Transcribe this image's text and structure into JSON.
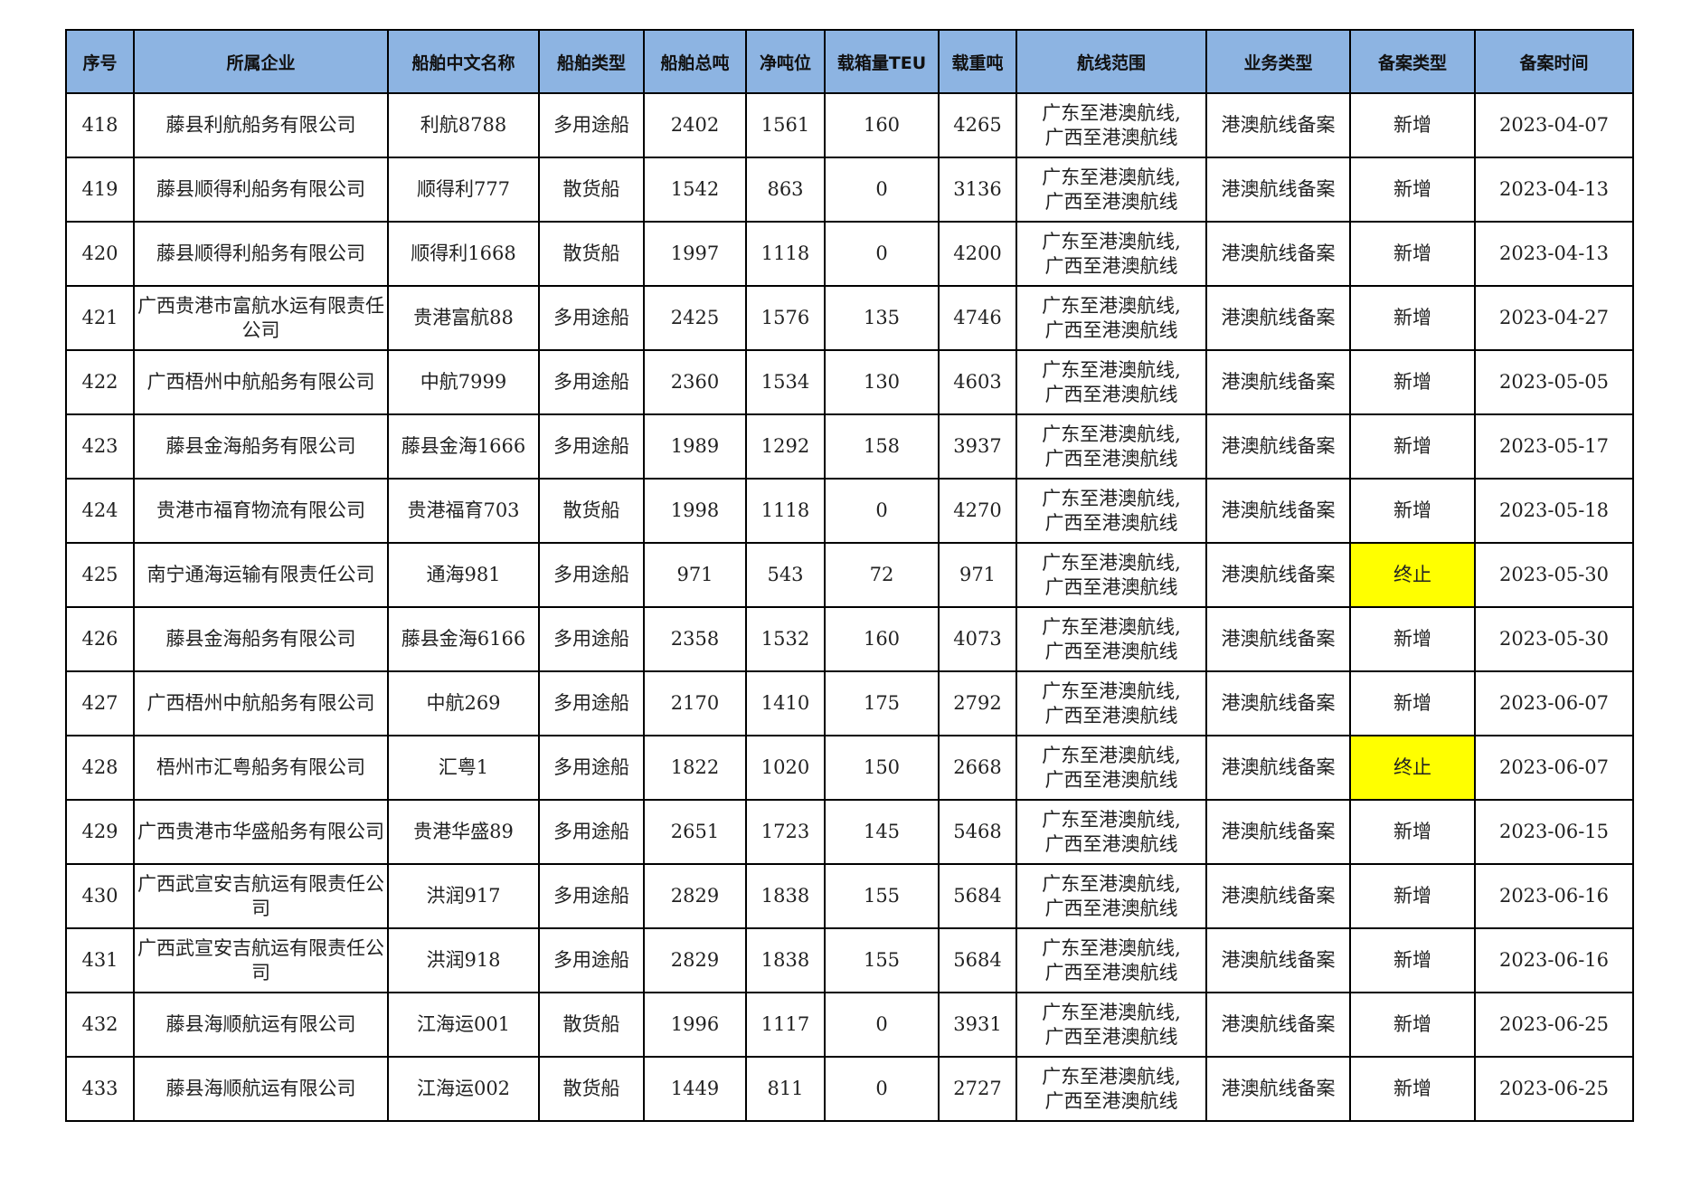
{
  "headers": [
    "序号",
    "所属企业",
    "船舶中文名称",
    "船舶类型",
    "船舶总吨",
    "净吨位",
    "载箱量TEU",
    "载重吨",
    "航线范围",
    "业务类型",
    "备案类型",
    "备案时间"
  ],
  "highlight_color": "#ffff00",
  "header_color": "#8db4e2",
  "rows": [
    [
      "418",
      "藤县利航船务有限公司",
      "利航8788",
      "多用途船",
      "2402",
      "1561",
      "160",
      "4265",
      "广东至港澳航线,广西至港澳航线",
      "港澳航线备案",
      "新增",
      "2023-04-07"
    ],
    [
      "419",
      "藤县顺得利船务有限公司",
      "顺得利777",
      "散货船",
      "1542",
      "863",
      "0",
      "3136",
      "广东至港澳航线,广西至港澳航线",
      "港澳航线备案",
      "新增",
      "2023-04-13"
    ],
    [
      "420",
      "藤县顺得利船务有限公司",
      "顺得利1668",
      "散货船",
      "1997",
      "1118",
      "0",
      "4200",
      "广东至港澳航线,广西至港澳航线",
      "港澳航线备案",
      "新增",
      "2023-04-13"
    ],
    [
      "421",
      "广西贵港市富航水运有限责任公司",
      "贵港富航88",
      "多用途船",
      "2425",
      "1576",
      "135",
      "4746",
      "广东至港澳航线,广西至港澳航线",
      "港澳航线备案",
      "新增",
      "2023-04-27"
    ],
    [
      "422",
      "广西梧州中航船务有限公司",
      "中航7999",
      "多用途船",
      "2360",
      "1534",
      "130",
      "4603",
      "广东至港澳航线,广西至港澳航线",
      "港澳航线备案",
      "新增",
      "2023-05-05"
    ],
    [
      "423",
      "藤县金海船务有限公司",
      "藤县金海1666",
      "多用途船",
      "1989",
      "1292",
      "158",
      "3937",
      "广东至港澳航线,广西至港澳航线",
      "港澳航线备案",
      "新增",
      "2023-05-17"
    ],
    [
      "424",
      "贵港市福育物流有限公司",
      "贵港福育703",
      "散货船",
      "1998",
      "1118",
      "0",
      "4270",
      "广东至港澳航线,广西至港澳航线",
      "港澳航线备案",
      "新增",
      "2023-05-18"
    ],
    [
      "425",
      "南宁通海运输有限责任公司",
      "通海981",
      "多用途船",
      "971",
      "543",
      "72",
      "971",
      "广东至港澳航线,广西至港澳航线",
      "港澳航线备案",
      "终止",
      "2023-05-30"
    ],
    [
      "426",
      "藤县金海船务有限公司",
      "藤县金海6166",
      "多用途船",
      "2358",
      "1532",
      "160",
      "4073",
      "广东至港澳航线,广西至港澳航线",
      "港澳航线备案",
      "新增",
      "2023-05-30"
    ],
    [
      "427",
      "广西梧州中航船务有限公司",
      "中航269",
      "多用途船",
      "2170",
      "1410",
      "175",
      "2792",
      "广东至港澳航线,广西至港澳航线",
      "港澳航线备案",
      "新增",
      "2023-06-07"
    ],
    [
      "428",
      "梧州市汇粤船务有限公司",
      "汇粤1",
      "多用途船",
      "1822",
      "1020",
      "150",
      "2668",
      "广东至港澳航线,广西至港澳航线",
      "港澳航线备案",
      "终止",
      "2023-06-07"
    ],
    [
      "429",
      "广西贵港市华盛船务有限公司",
      "贵港华盛89",
      "多用途船",
      "2651",
      "1723",
      "145",
      "5468",
      "广东至港澳航线,广西至港澳航线",
      "港澳航线备案",
      "新增",
      "2023-06-15"
    ],
    [
      "430",
      "广西武宣安吉航运有限责任公司",
      "洪润917",
      "多用途船",
      "2829",
      "1838",
      "155",
      "5684",
      "广东至港澳航线,广西至港澳航线",
      "港澳航线备案",
      "新增",
      "2023-06-16"
    ],
    [
      "431",
      "广西武宣安吉航运有限责任公司",
      "洪润918",
      "多用途船",
      "2829",
      "1838",
      "155",
      "5684",
      "广东至港澳航线,广西至港澳航线",
      "港澳航线备案",
      "新增",
      "2023-06-16"
    ],
    [
      "432",
      "藤县海顺航运有限公司",
      "江海运001",
      "散货船",
      "1996",
      "1117",
      "0",
      "3931",
      "广东至港澳航线,广西至港澳航线",
      "港澳航线备案",
      "新增",
      "2023-06-25"
    ],
    [
      "433",
      "藤县海顺航运有限公司",
      "江海运002",
      "散货船",
      "1449",
      "811",
      "0",
      "2727",
      "广东至港澳航线,广西至港澳航线",
      "港澳航线备案",
      "新增",
      "2023-06-25"
    ]
  ]
}
